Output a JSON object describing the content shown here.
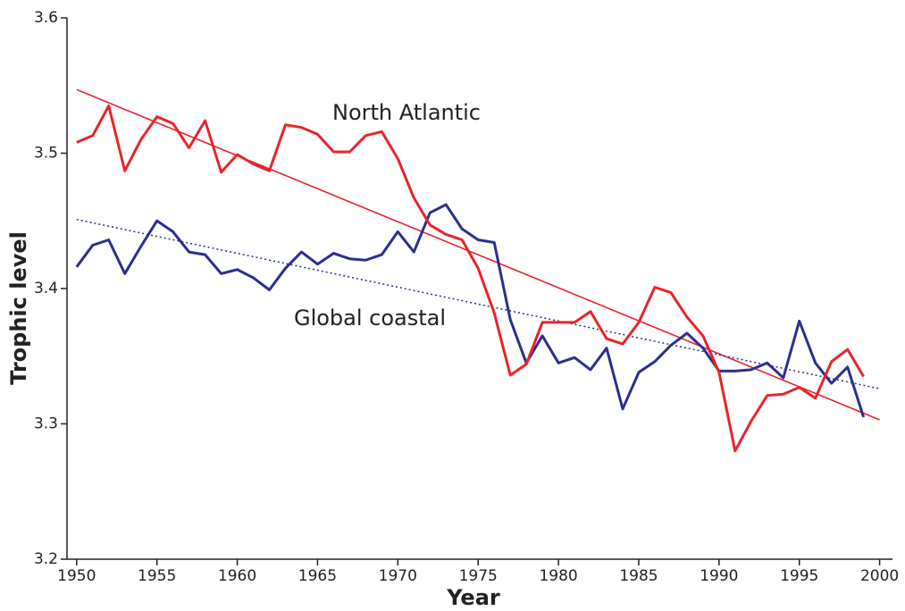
{
  "chart_data": {
    "type": "line",
    "x_label": "Year",
    "y_label": "Trophic level",
    "x": [
      1950,
      1951,
      1952,
      1953,
      1954,
      1955,
      1956,
      1957,
      1958,
      1959,
      1960,
      1961,
      1962,
      1963,
      1964,
      1965,
      1966,
      1967,
      1968,
      1969,
      1970,
      1971,
      1972,
      1973,
      1974,
      1975,
      1976,
      1977,
      1978,
      1979,
      1980,
      1981,
      1982,
      1983,
      1984,
      1985,
      1986,
      1987,
      1988,
      1989,
      1990,
      1991,
      1992,
      1993,
      1994,
      1995,
      1996,
      1997,
      1998,
      1999
    ],
    "series": [
      {
        "name": "North Atlantic",
        "color": "#e8242b",
        "values": [
          3.508,
          3.513,
          3.535,
          3.487,
          3.51,
          3.527,
          3.522,
          3.504,
          3.524,
          3.486,
          3.499,
          3.492,
          3.487,
          3.521,
          3.519,
          3.514,
          3.501,
          3.501,
          3.513,
          3.516,
          3.496,
          3.467,
          3.447,
          3.44,
          3.436,
          3.415,
          3.382,
          3.336,
          3.344,
          3.375,
          3.375,
          3.375,
          3.383,
          3.363,
          3.359,
          3.375,
          3.401,
          3.397,
          3.379,
          3.365,
          3.338,
          3.28,
          3.302,
          3.321,
          3.322,
          3.327,
          3.319,
          3.346,
          3.355,
          3.335
        ]
      },
      {
        "name": "Global coastal",
        "color": "#2b2f8f",
        "values": [
          3.416,
          3.432,
          3.436,
          3.411,
          3.431,
          3.45,
          3.442,
          3.427,
          3.425,
          3.411,
          3.414,
          3.408,
          3.399,
          3.415,
          3.427,
          3.418,
          3.426,
          3.422,
          3.421,
          3.425,
          3.442,
          3.427,
          3.456,
          3.462,
          3.444,
          3.436,
          3.434,
          3.377,
          3.345,
          3.365,
          3.345,
          3.349,
          3.34,
          3.356,
          3.311,
          3.338,
          3.346,
          3.358,
          3.367,
          3.356,
          3.339,
          3.339,
          3.34,
          3.345,
          3.334,
          3.376,
          3.345,
          3.33,
          3.342,
          3.305
        ]
      }
    ],
    "trends": [
      {
        "x": [
          1950,
          2000
        ],
        "values": [
          3.547,
          3.303
        ],
        "color": "#e8242b",
        "dash": false
      },
      {
        "x": [
          1950,
          2000
        ],
        "values": [
          3.451,
          3.326
        ],
        "color": "#2b2f8f",
        "dash": true
      }
    ],
    "xlim": [
      1949.4,
      2000.8
    ],
    "xticks": [
      1950,
      1955,
      1960,
      1965,
      1970,
      1975,
      1980,
      1985,
      1990,
      1995,
      2000
    ],
    "ylim": [
      3.2,
      3.6
    ],
    "yticks": [
      3.2,
      3.3,
      3.4,
      3.5,
      3.6
    ]
  }
}
